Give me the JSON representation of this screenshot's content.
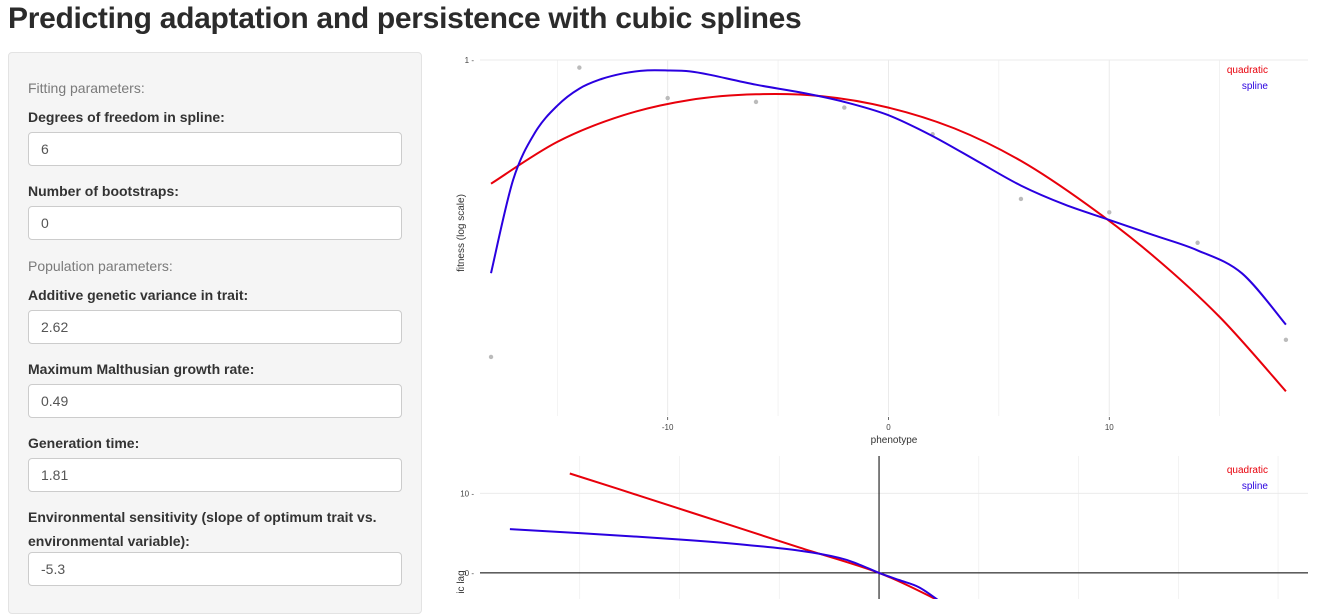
{
  "page": {
    "title": "Predicting adaptation and persistence with cubic splines"
  },
  "sidebar": {
    "fitting_header": "Fitting parameters:",
    "population_header": "Population parameters:",
    "fields": [
      {
        "label": "Degrees of freedom in spline:",
        "value": "6"
      },
      {
        "label": "Number of bootstraps:",
        "value": "0"
      },
      {
        "label": "Additive genetic variance in trait:",
        "value": "2.62"
      },
      {
        "label": "Maximum Malthusian growth rate:",
        "value": "0.49"
      },
      {
        "label": "Generation time:",
        "value": "1.81"
      },
      {
        "label": "Environmental sensitivity (slope of optimum trait vs. environmental variable):",
        "value": "-5.3"
      }
    ]
  },
  "colors": {
    "quadratic": "#e8000b",
    "spline": "#2a00e0",
    "points": "#bbbbbb",
    "grid": "#ebebeb"
  },
  "chart_data": [
    {
      "type": "line",
      "title": "",
      "xlabel": "phenotype",
      "ylabel": "fitness (log scale)",
      "xlim": [
        -18.5,
        19
      ],
      "ylim": [
        -1.87,
        0
      ],
      "xticks": [
        -10,
        0,
        10
      ],
      "xtick_labels": [
        "-10",
        "0",
        "10"
      ],
      "yticks": [
        0
      ],
      "ytick_labels": [
        "1"
      ],
      "legend": [
        "quadratic",
        "spline"
      ],
      "legend_position": "top-right",
      "points": {
        "x": [
          -18,
          -14,
          -10,
          -6,
          -2,
          2,
          6,
          10,
          14,
          18
        ],
        "y": [
          -1.56,
          -0.04,
          -0.2,
          -0.22,
          -0.25,
          -0.39,
          -0.73,
          -0.8,
          -0.96,
          -1.47
        ]
      },
      "series": [
        {
          "name": "quadratic",
          "x": [
            -18,
            -15,
            -12,
            -9,
            -6,
            -3,
            0,
            3,
            6,
            9,
            12,
            15,
            18
          ],
          "y": [
            -0.65,
            -0.43,
            -0.29,
            -0.21,
            -0.18,
            -0.19,
            -0.25,
            -0.36,
            -0.53,
            -0.76,
            -1.03,
            -1.35,
            -1.74
          ]
        },
        {
          "name": "spline",
          "x": [
            -18,
            -17,
            -16,
            -15,
            -14,
            -13,
            -12,
            -11,
            -10,
            -9,
            -8,
            -6,
            -4,
            -2,
            0,
            2,
            4,
            6,
            8,
            10,
            12,
            14,
            16,
            18
          ],
          "y": [
            -1.12,
            -0.63,
            -0.38,
            -0.24,
            -0.15,
            -0.1,
            -0.07,
            -0.055,
            -0.055,
            -0.06,
            -0.08,
            -0.13,
            -0.17,
            -0.22,
            -0.29,
            -0.4,
            -0.53,
            -0.66,
            -0.76,
            -0.84,
            -0.92,
            -1.0,
            -1.12,
            -1.39
          ]
        }
      ]
    },
    {
      "type": "line",
      "title": "",
      "xlabel": "",
      "ylabel": "phenotypic lag",
      "ylabel_visible": "ic lag",
      "xlim": [
        -20,
        21.5
      ],
      "ylim": [
        -3.2,
        14.7
      ],
      "yticks": [
        0,
        10
      ],
      "ytick_labels": [
        "0",
        "10"
      ],
      "legend": [
        "quadratic",
        "spline"
      ],
      "legend_position": "top-right",
      "series": [
        {
          "name": "quadratic",
          "x": [
            -15.5,
            -12,
            -8,
            -4,
            0,
            3
          ],
          "y": [
            12.5,
            9.7,
            6.45,
            3.2,
            0,
            -3.5
          ]
        },
        {
          "name": "spline",
          "x": [
            -18.5,
            -15,
            -10,
            -7,
            -4,
            -2,
            -1,
            0,
            1,
            2,
            3
          ],
          "y": [
            5.5,
            5.0,
            4.2,
            3.6,
            2.8,
            1.9,
            1.05,
            0,
            -0.9,
            -1.8,
            -3.5
          ]
        }
      ]
    }
  ]
}
